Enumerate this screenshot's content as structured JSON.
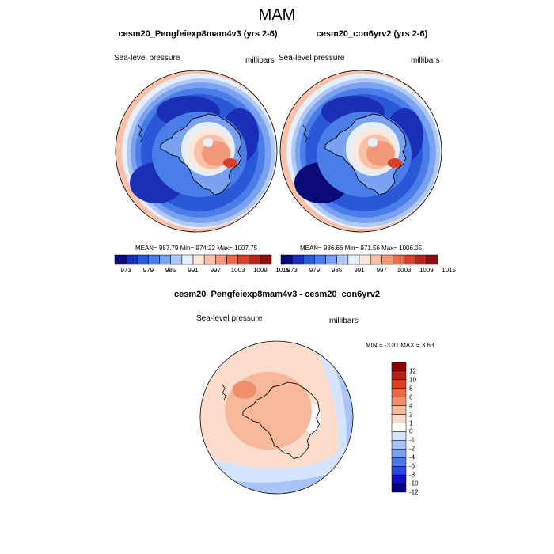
{
  "title": "MAM",
  "colors": {
    "abs_scale": [
      "#0a0a78",
      "#1a2fb5",
      "#2a58d9",
      "#4a7de8",
      "#7aa2f0",
      "#b0c9f7",
      "#e6f0fc",
      "#fde9dc",
      "#f9c2a8",
      "#f29878",
      "#ec6a48",
      "#d8402a",
      "#b8261a",
      "#8c1010"
    ],
    "diff_scale": [
      "#000080",
      "#1010c8",
      "#2848e8",
      "#4a78f0",
      "#7aa0f4",
      "#a8c4f8",
      "#d4e4fc",
      "#ffffff",
      "#fddccc",
      "#f8b89c",
      "#f28e6c",
      "#ea6840",
      "#e04020",
      "#c02010",
      "#900000"
    ],
    "coast": "#000000"
  },
  "chart_data": [
    {
      "type": "heatmap",
      "title": "cesm20_Pengfeiexp8mam4v3 (yrs 2-6)",
      "variable_label": "Sea-level pressure",
      "units_label": "millibars",
      "stats_text": "MEAN= 987.79  Min= 974.22  Max= 1007.75",
      "mean": 987.79,
      "min": 974.22,
      "max": 1007.75,
      "colorbar_ticks": [
        "973",
        "979",
        "985",
        "991",
        "997",
        "1003",
        "1009",
        "1015"
      ]
    },
    {
      "type": "heatmap",
      "title": "cesm20_con6yrv2 (yrs 2-6)",
      "variable_label": "Sea-level pressure",
      "units_label": "millibars",
      "stats_text": "MEAN= 986.66  Min= 971.56  Max= 1006.05",
      "mean": 986.66,
      "min": 971.56,
      "max": 1006.05,
      "colorbar_ticks": [
        "973",
        "979",
        "985",
        "991",
        "997",
        "1003",
        "1009",
        "1015"
      ]
    },
    {
      "type": "heatmap",
      "title": "cesm20_Pengfeiexp8mam4v3 - cesm20_con6yrv2",
      "variable_label": "Sea-level pressure",
      "units_label": "millibars",
      "stats_text": "MIN =  -3.81 MAX =   3.63",
      "min": -3.81,
      "max": 3.63,
      "colorbar_ticks": [
        "12",
        "10",
        "8",
        "6",
        "4",
        "2",
        "1",
        "0",
        "-1",
        "-2",
        "-4",
        "-6",
        "-8",
        "-10",
        "-12"
      ]
    }
  ]
}
